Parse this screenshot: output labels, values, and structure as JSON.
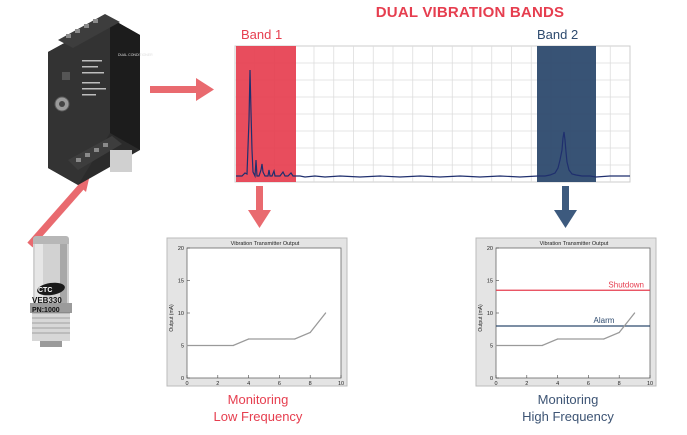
{
  "title": "DUAL VIBRATION BANDS",
  "spectrum": {
    "band1_label": "Band 1",
    "band2_label": "Band 2"
  },
  "transmitter_device": {
    "labels": [
      "DUAL CONDITIONER"
    ]
  },
  "sensor": {
    "labels": [
      "CTC",
      "VEB330",
      "PN:1000"
    ]
  },
  "charts": {
    "left": {
      "title": "Vibration Transmitter Output",
      "ylabel": "Output (mA)",
      "yticks": [
        "0",
        "5",
        "10",
        "15",
        "20"
      ],
      "xticks": [
        "0",
        "2",
        "4",
        "6",
        "8",
        "10"
      ]
    },
    "right": {
      "title": "Vibration Transmitter Output",
      "ylabel": "Output (mA)",
      "yticks": [
        "0",
        "5",
        "10",
        "15",
        "20"
      ],
      "xticks": [
        "0",
        "2",
        "4",
        "6",
        "8",
        "10"
      ],
      "shutdown_label": "Shutdown",
      "alarm_label": "Alarm"
    }
  },
  "captions": {
    "low_line1": "Monitoring",
    "low_line2": "Low Frequency",
    "high_line1": "Monitoring",
    "high_line2": "High Frequency"
  },
  "chart_data": [
    {
      "type": "line",
      "title": "Vibration Transmitter Output",
      "ylabel": "Output (mA)",
      "xlim": [
        0,
        10
      ],
      "ylim": [
        0,
        20
      ],
      "x": [
        0,
        3,
        4,
        7,
        8,
        9
      ],
      "y": [
        5,
        5,
        6,
        6,
        7,
        10
      ]
    },
    {
      "type": "line",
      "title": "Vibration Transmitter Output",
      "ylabel": "Output (mA)",
      "xlim": [
        0,
        10
      ],
      "ylim": [
        0,
        20
      ],
      "x": [
        0,
        3,
        4,
        7,
        8,
        9
      ],
      "y": [
        5,
        5,
        6,
        6,
        7,
        10
      ],
      "thresholds": [
        {
          "name": "Shutdown",
          "value": 13.5,
          "color": "#e63e4f"
        },
        {
          "name": "Alarm",
          "value": 8,
          "color": "#2d4a6e"
        }
      ]
    }
  ],
  "colors": {
    "red": "#e63e4f",
    "navy": "#2d4a6e",
    "arrow_blue": "#3d5a7e"
  }
}
